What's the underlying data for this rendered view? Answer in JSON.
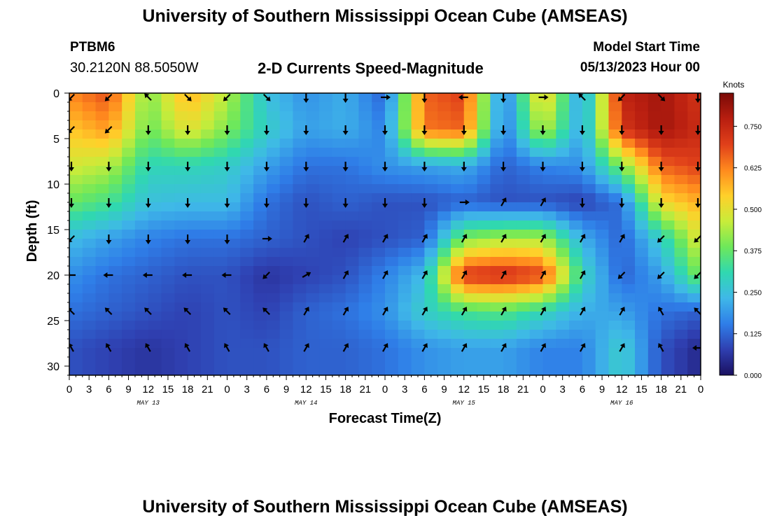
{
  "header": {
    "title": "University of Southern Mississippi Ocean Cube (AMSEAS)",
    "station": "PTBM6",
    "coordinates": "30.2120N  88.5050W",
    "subtitle": "2-D Currents Speed-Magnitude",
    "model_start_label": "Model Start Time",
    "model_start_value": "05/13/2023 Hour 00"
  },
  "footer": {
    "title": "University of Southern Mississippi Ocean Cube (AMSEAS)"
  },
  "chart_data": {
    "type": "heatmap",
    "title": "2-D Currents Speed-Magnitude",
    "xlabel": "Forecast Time(Z)",
    "ylabel": "Depth (ft)",
    "x_tick_labels": [
      "0",
      "3",
      "6",
      "9",
      "12",
      "15",
      "18",
      "21",
      "0",
      "3",
      "6",
      "9",
      "12",
      "15",
      "18",
      "21",
      "0",
      "3",
      "6",
      "9",
      "12",
      "15",
      "18",
      "21",
      "0",
      "3",
      "6",
      "9",
      "12",
      "15",
      "18",
      "21",
      "0"
    ],
    "date_labels": [
      "MAY 13",
      "MAY 14",
      "MAY 15",
      "MAY 16"
    ],
    "y_ticks": [
      0,
      5,
      10,
      15,
      20,
      25,
      30
    ],
    "ylim": [
      0,
      31
    ],
    "xlim_hours": [
      0,
      96
    ],
    "colorbar": {
      "unit": "Knots",
      "min": 0,
      "max": 0.85,
      "tick_labels": [
        "0.000",
        "0.125",
        "0.250",
        "0.375",
        "0.500",
        "0.625",
        "0.750"
      ],
      "colors": [
        "#1a1060",
        "#2f3fb0",
        "#2f7ee8",
        "#3fb8e8",
        "#30d8b0",
        "#6ee85a",
        "#c8ec3a",
        "#ffd02a",
        "#ff8a1e",
        "#e0401a",
        "#b81e10",
        "#7a0a06"
      ]
    },
    "depth_levels_ft": [
      0,
      4,
      8,
      12,
      16,
      20,
      24,
      28
    ],
    "hours": [
      0,
      6,
      12,
      18,
      24,
      30,
      36,
      42,
      48,
      54,
      60,
      66,
      72,
      78,
      84,
      90,
      96
    ],
    "speed_knots": [
      [
        0.62,
        0.68,
        0.4,
        0.58,
        0.45,
        0.25,
        0.18,
        0.22,
        0.12,
        0.66,
        0.7,
        0.14,
        0.55,
        0.18,
        0.76,
        0.8,
        0.72
      ],
      [
        0.55,
        0.6,
        0.38,
        0.5,
        0.4,
        0.28,
        0.2,
        0.22,
        0.16,
        0.64,
        0.66,
        0.14,
        0.46,
        0.2,
        0.72,
        0.8,
        0.74
      ],
      [
        0.48,
        0.45,
        0.3,
        0.3,
        0.28,
        0.2,
        0.14,
        0.14,
        0.18,
        0.2,
        0.22,
        0.12,
        0.16,
        0.18,
        0.4,
        0.66,
        0.7
      ],
      [
        0.38,
        0.34,
        0.25,
        0.24,
        0.24,
        0.14,
        0.1,
        0.12,
        0.1,
        0.1,
        0.12,
        0.1,
        0.1,
        0.08,
        0.14,
        0.52,
        0.58
      ],
      [
        0.24,
        0.2,
        0.16,
        0.14,
        0.14,
        0.12,
        0.1,
        0.08,
        0.1,
        0.12,
        0.4,
        0.44,
        0.44,
        0.22,
        0.12,
        0.28,
        0.5
      ],
      [
        0.18,
        0.14,
        0.12,
        0.1,
        0.1,
        0.06,
        0.08,
        0.1,
        0.16,
        0.24,
        0.72,
        0.74,
        0.7,
        0.3,
        0.12,
        0.2,
        0.4
      ],
      [
        0.14,
        0.12,
        0.1,
        0.08,
        0.1,
        0.08,
        0.12,
        0.14,
        0.18,
        0.28,
        0.34,
        0.36,
        0.3,
        0.22,
        0.2,
        0.14,
        0.12
      ],
      [
        0.1,
        0.08,
        0.06,
        0.08,
        0.1,
        0.1,
        0.12,
        0.12,
        0.14,
        0.18,
        0.2,
        0.2,
        0.16,
        0.16,
        0.28,
        0.1,
        0.04
      ]
    ],
    "arrow_directions_deg": [
      [
        225,
        225,
        135,
        315,
        225,
        315,
        270,
        270,
        0,
        270,
        180,
        270,
        0,
        135,
        225,
        315,
        270
      ],
      [
        225,
        225,
        270,
        270,
        270,
        270,
        270,
        270,
        270,
        270,
        270,
        270,
        270,
        270,
        270,
        270,
        270
      ],
      [
        270,
        270,
        270,
        270,
        270,
        270,
        270,
        270,
        270,
        270,
        270,
        270,
        270,
        270,
        270,
        270,
        270
      ],
      [
        270,
        270,
        270,
        270,
        270,
        270,
        270,
        270,
        270,
        270,
        0,
        60,
        60,
        270,
        270,
        270,
        270
      ],
      [
        225,
        270,
        270,
        270,
        270,
        0,
        60,
        60,
        60,
        60,
        60,
        60,
        60,
        60,
        60,
        225,
        225
      ],
      [
        180,
        180,
        180,
        180,
        180,
        225,
        30,
        60,
        60,
        60,
        60,
        60,
        60,
        60,
        225,
        225,
        225
      ],
      [
        135,
        135,
        135,
        135,
        135,
        135,
        60,
        60,
        60,
        60,
        60,
        60,
        60,
        60,
        60,
        120,
        135
      ],
      [
        120,
        120,
        120,
        120,
        120,
        120,
        60,
        60,
        60,
        60,
        60,
        60,
        60,
        60,
        60,
        120,
        180
      ]
    ]
  }
}
